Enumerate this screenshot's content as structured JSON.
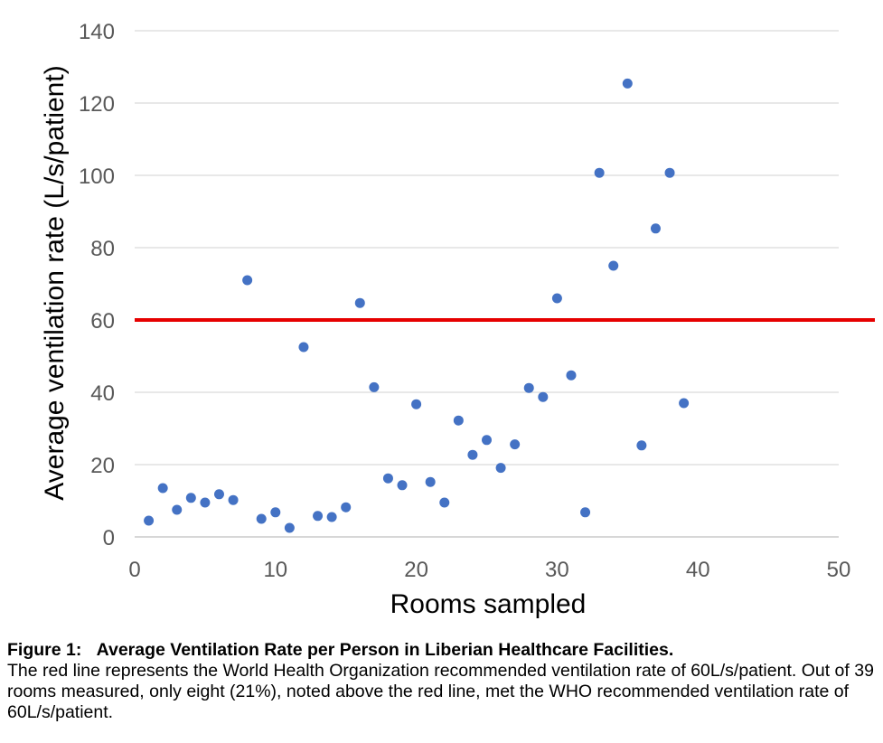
{
  "chart_data": {
    "type": "scatter",
    "xlabel": "Rooms sampled",
    "ylabel": "Average ventilation rate (L/s/patient)",
    "xlim": [
      0,
      50
    ],
    "ylim": [
      0,
      140
    ],
    "xticks": [
      0,
      10,
      20,
      30,
      40,
      50
    ],
    "yticks": [
      0,
      20,
      40,
      60,
      80,
      100,
      120,
      140
    ],
    "grid": "horizontal",
    "reference_line": {
      "y": 60,
      "color": "#e60000"
    },
    "series": [
      {
        "color": "#4472c4",
        "x": [
          1,
          2,
          3,
          4,
          5,
          6,
          7,
          8,
          9,
          10,
          11,
          12,
          13,
          14,
          15,
          16,
          17,
          18,
          19,
          20,
          21,
          22,
          23,
          24,
          25,
          26,
          27,
          28,
          29,
          30,
          31,
          32,
          33,
          34,
          35,
          36,
          37,
          38,
          39
        ],
        "y": [
          4.5,
          13.5,
          7.5,
          10.8,
          9.5,
          11.8,
          10.2,
          71,
          5,
          6.8,
          2.5,
          52.5,
          5.8,
          5.5,
          8.2,
          64.7,
          41.4,
          16.2,
          14.3,
          36.7,
          15.2,
          9.5,
          32.2,
          22.7,
          26.8,
          19.1,
          25.6,
          41.2,
          38.7,
          66,
          44.7,
          6.8,
          100.7,
          75,
          125.4,
          25.3,
          85.3,
          100.7,
          37
        ]
      }
    ]
  },
  "caption": {
    "label": "Figure 1:",
    "title": "Average Ventilation Rate per Person in Liberian Healthcare Facilities.",
    "body": "The red line represents the World Health Organization recommended ventilation rate of 60L/s/patient. Out of 39 rooms measured, only eight (21%), noted above the red line, met the WHO recommended ventilation rate of 60L/s/patient."
  }
}
